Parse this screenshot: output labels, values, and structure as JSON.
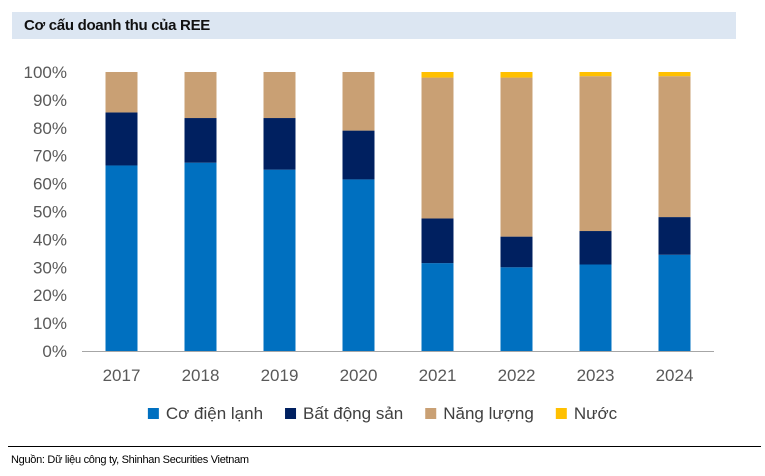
{
  "title": "Cơ cấu doanh thu của REE",
  "source": "Nguồn: Dữ liệu công ty, Shinhan Securities Vietnam",
  "chart_data": {
    "type": "bar",
    "stacked": true,
    "title": "Cơ cấu doanh thu của REE",
    "xlabel": "",
    "ylabel": "",
    "ylim": [
      0,
      100
    ],
    "yticks": [
      0,
      10,
      20,
      30,
      40,
      50,
      60,
      70,
      80,
      90,
      100
    ],
    "ytick_labels": [
      "0%",
      "10%",
      "20%",
      "30%",
      "40%",
      "50%",
      "60%",
      "70%",
      "80%",
      "90%",
      "100%"
    ],
    "categories": [
      "2017",
      "2018",
      "2019",
      "2020",
      "2021",
      "2022",
      "2023",
      "2024"
    ],
    "grid": false,
    "legend_position": "bottom",
    "series": [
      {
        "name": "Cơ điện lạnh",
        "color": "#0070c0",
        "values": [
          66.5,
          67.5,
          65.0,
          61.5,
          31.5,
          30.0,
          31.0,
          34.5
        ]
      },
      {
        "name": "Bất động sản",
        "color": "#002060",
        "values": [
          19.0,
          16.0,
          18.5,
          17.5,
          16.0,
          11.0,
          12.0,
          13.5
        ]
      },
      {
        "name": "Năng lượng",
        "color": "#c9a074",
        "values": [
          14.5,
          16.5,
          16.5,
          21.0,
          50.5,
          57.0,
          55.5,
          50.5
        ]
      },
      {
        "name": "Nước",
        "color": "#ffc000",
        "values": [
          0,
          0,
          0,
          0,
          2.0,
          2.0,
          1.5,
          1.5
        ]
      }
    ]
  }
}
